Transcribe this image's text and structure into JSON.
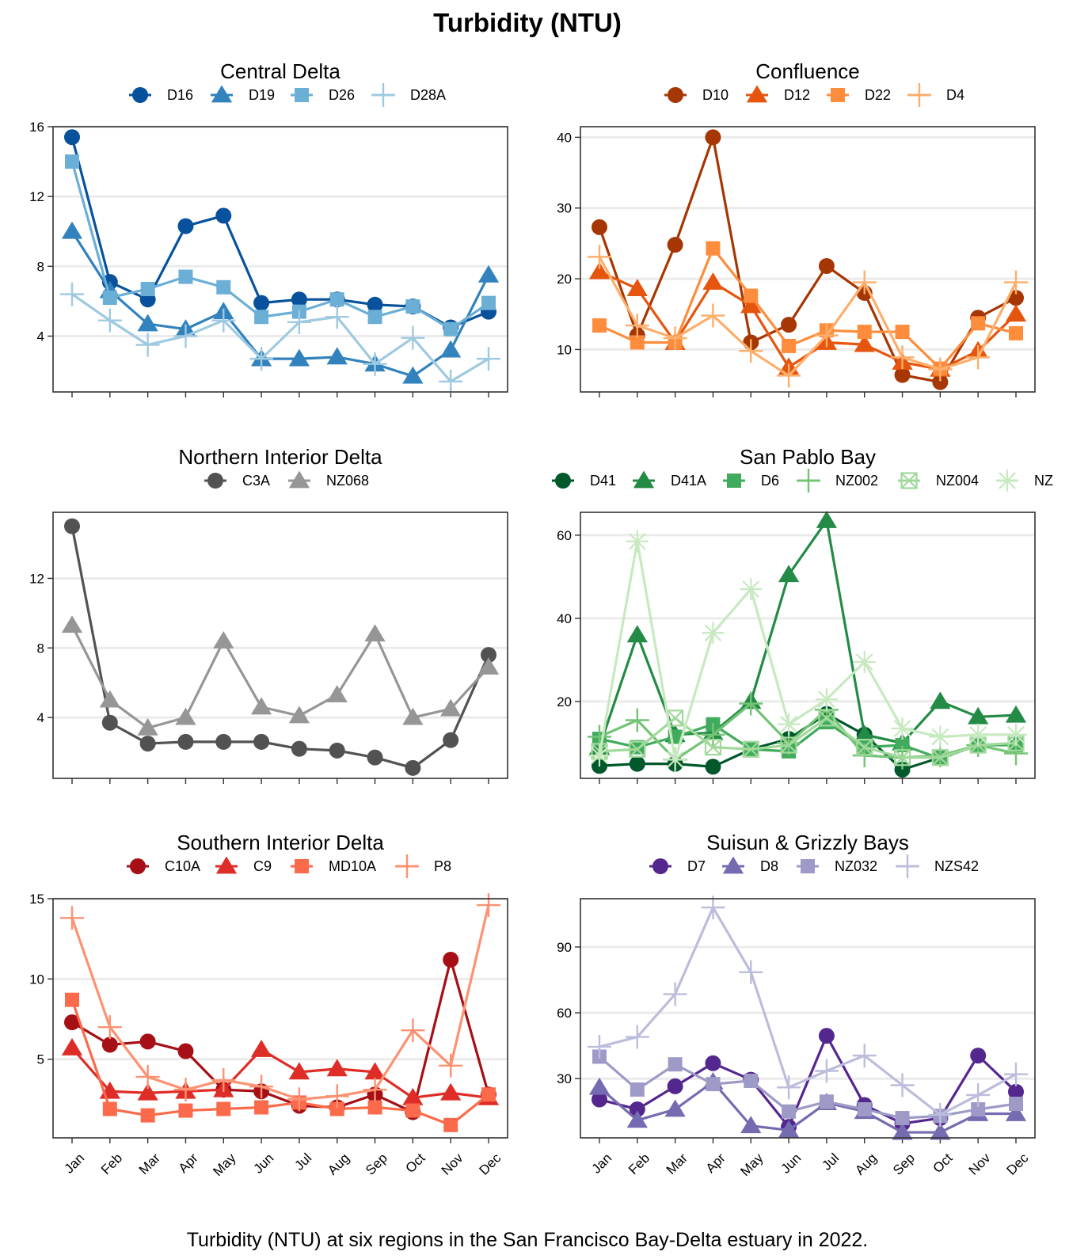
{
  "title": "Turbidity (NTU)",
  "caption": "Turbidity (NTU) at six regions in the San Francisco Bay-Delta estuary in 2022.",
  "chart_data": [
    {
      "type": "line",
      "title": "Central Delta",
      "categories": [
        "Jan",
        "Feb",
        "Mar",
        "Apr",
        "May",
        "Jun",
        "Jul",
        "Aug",
        "Sep",
        "Oct",
        "Nov",
        "Dec"
      ],
      "yticks": [
        4,
        8,
        12,
        16
      ],
      "ylim": [
        0.8,
        16
      ],
      "series": [
        {
          "name": "D16",
          "color": "#08519c",
          "shape": "circle",
          "values": [
            15.4,
            7.1,
            6.1,
            10.3,
            10.9,
            5.9,
            6.1,
            6.1,
            5.8,
            5.7,
            4.5,
            5.4
          ]
        },
        {
          "name": "D19",
          "color": "#3182bd",
          "shape": "triangle",
          "values": [
            10.0,
            6.6,
            4.7,
            4.4,
            5.4,
            2.7,
            2.7,
            2.8,
            2.4,
            1.7,
            3.2,
            7.5
          ]
        },
        {
          "name": "D26",
          "color": "#6baed6",
          "shape": "square",
          "values": [
            14.0,
            6.2,
            6.7,
            7.4,
            6.8,
            5.1,
            5.4,
            6.1,
            5.1,
            5.7,
            4.4,
            5.9
          ]
        },
        {
          "name": "D28A",
          "color": "#9ecae1",
          "shape": "plus",
          "values": [
            6.4,
            4.9,
            3.5,
            4.0,
            4.9,
            2.7,
            4.8,
            5.1,
            2.4,
            3.9,
            1.4,
            2.7
          ]
        }
      ]
    },
    {
      "type": "line",
      "title": "Confluence",
      "categories": [
        "Jan",
        "Feb",
        "Mar",
        "Apr",
        "May",
        "Jun",
        "Jul",
        "Aug",
        "Sep",
        "Oct",
        "Nov",
        "Dec"
      ],
      "yticks": [
        10,
        20,
        30,
        40
      ],
      "ylim": [
        4,
        41.5
      ],
      "series": [
        {
          "name": "D10",
          "color": "#a63603",
          "shape": "circle",
          "values": [
            27.3,
            12.0,
            24.8,
            40.0,
            11.0,
            13.5,
            21.8,
            18.0,
            6.4,
            5.4,
            14.5,
            17.3
          ]
        },
        {
          "name": "D12",
          "color": "#e6550d",
          "shape": "triangle",
          "values": [
            21.0,
            18.6,
            11.0,
            19.5,
            16.2,
            7.5,
            11.0,
            10.7,
            8.2,
            7.2,
            9.8,
            15.0
          ]
        },
        {
          "name": "D22",
          "color": "#fd8d3c",
          "shape": "square",
          "values": [
            13.4,
            11.0,
            11.0,
            24.3,
            17.6,
            10.5,
            12.7,
            12.5,
            12.5,
            7.3,
            13.7,
            12.3
          ]
        },
        {
          "name": "D4",
          "color": "#fdae6b",
          "shape": "plus",
          "values": [
            23.1,
            13.4,
            11.6,
            14.8,
            9.8,
            6.3,
            12.0,
            19.5,
            8.9,
            7.2,
            8.9,
            19.5
          ]
        }
      ]
    },
    {
      "type": "line",
      "title": "Northern Interior Delta",
      "categories": [
        "Jan",
        "Feb",
        "Mar",
        "Apr",
        "May",
        "Jun",
        "Jul",
        "Aug",
        "Sep",
        "Oct",
        "Nov",
        "Dec"
      ],
      "yticks": [
        4,
        8,
        12
      ],
      "ylim": [
        0.5,
        15.8
      ],
      "series": [
        {
          "name": "C3A",
          "color": "#525252",
          "shape": "circle",
          "values": [
            15.0,
            3.7,
            2.5,
            2.6,
            2.6,
            2.6,
            2.2,
            2.1,
            1.7,
            1.1,
            2.7,
            7.6
          ]
        },
        {
          "name": "NZ068",
          "color": "#969696",
          "shape": "triangle",
          "values": [
            9.3,
            5.0,
            3.4,
            4.0,
            8.4,
            4.6,
            4.1,
            5.3,
            8.8,
            4.0,
            4.5,
            6.9
          ]
        }
      ]
    },
    {
      "type": "line",
      "title": "San Pablo Bay",
      "categories": [
        "Jan",
        "Feb",
        "Mar",
        "Apr",
        "May",
        "Jun",
        "Jul",
        "Aug",
        "Sep",
        "Oct",
        "Nov",
        "Dec"
      ],
      "yticks": [
        20,
        40,
        60
      ],
      "ylim": [
        1.5,
        65.5
      ],
      "series": [
        {
          "name": "D41",
          "color": "#00582b",
          "shape": "circle",
          "values": [
            4.5,
            5.0,
            5.0,
            4.3,
            8.5,
            11.0,
            17.0,
            12.0,
            3.6,
            6.5,
            9.5,
            9.8
          ]
        },
        {
          "name": "D41A",
          "color": "#238b45",
          "shape": "triangle",
          "values": [
            9.0,
            36.0,
            12.0,
            12.5,
            20.0,
            50.5,
            63.5,
            12.0,
            10.0,
            20.0,
            16.3,
            16.7
          ]
        },
        {
          "name": "D6",
          "color": "#41ab5d",
          "shape": "square",
          "values": [
            11.0,
            9.0,
            11.5,
            14.5,
            8.5,
            8.0,
            15.0,
            9.0,
            9.5,
            6.3,
            9.5,
            9.5
          ]
        },
        {
          "name": "NZ002",
          "color": "#74c476",
          "shape": "plus",
          "values": [
            11.5,
            15.5,
            6.0,
            12.0,
            19.5,
            10.0,
            18.0,
            7.0,
            6.5,
            7.0,
            9.5,
            7.5
          ]
        },
        {
          "name": "NZ004",
          "color": "#a1d99b",
          "shape": "squarecross",
          "values": [
            8.0,
            8.5,
            16.0,
            9.0,
            8.5,
            9.5,
            16.0,
            9.0,
            6.5,
            6.5,
            9.5,
            10.0
          ]
        },
        {
          "name": "NZ",
          "color": "#c7e9c0",
          "shape": "asterisk",
          "values": [
            7.0,
            58.5,
            6.0,
            36.5,
            47.0,
            14.5,
            20.5,
            29.5,
            13.5,
            11.5,
            12.0,
            12.0
          ]
        }
      ]
    },
    {
      "type": "line",
      "title": "Southern Interior Delta",
      "categories": [
        "Jan",
        "Feb",
        "Mar",
        "Apr",
        "May",
        "Jun",
        "Jul",
        "Aug",
        "Sep",
        "Oct",
        "Nov",
        "Dec"
      ],
      "yticks": [
        5,
        10,
        15
      ],
      "ylim": [
        0.1,
        15.0
      ],
      "series": [
        {
          "name": "C10A",
          "color": "#a50f15",
          "shape": "circle",
          "values": [
            7.3,
            5.9,
            6.1,
            5.5,
            3.1,
            3.0,
            2.1,
            2.0,
            2.8,
            1.7,
            11.2,
            2.8
          ]
        },
        {
          "name": "C9",
          "color": "#de2d26",
          "shape": "triangle",
          "values": [
            5.7,
            3.0,
            2.9,
            3.0,
            3.1,
            5.6,
            4.2,
            4.4,
            4.2,
            2.6,
            2.9,
            2.6
          ]
        },
        {
          "name": "MD10A",
          "color": "#fb6a4a",
          "shape": "square",
          "values": [
            8.7,
            1.9,
            1.5,
            1.8,
            1.9,
            2.0,
            2.3,
            1.9,
            2.0,
            1.8,
            0.9,
            2.8
          ]
        },
        {
          "name": "P8",
          "color": "#fc9272",
          "shape": "plus",
          "values": [
            13.8,
            7.0,
            3.9,
            3.1,
            3.7,
            3.3,
            2.5,
            2.7,
            3.1,
            6.8,
            4.6,
            14.6
          ]
        }
      ]
    },
    {
      "type": "line",
      "title": "Suisun & Grizzly Bays",
      "categories": [
        "Jan",
        "Feb",
        "Mar",
        "Apr",
        "May",
        "Jun",
        "Jul",
        "Aug",
        "Sep",
        "Oct",
        "Nov",
        "Dec"
      ],
      "yticks": [
        30,
        60,
        90
      ],
      "ylim": [
        3,
        112
      ],
      "series": [
        {
          "name": "D7",
          "color": "#54278f",
          "shape": "circle",
          "values": [
            20.5,
            16.0,
            26.5,
            37.0,
            29.5,
            8.0,
            49.5,
            18.0,
            9.5,
            12.0,
            40.5,
            24.0
          ]
        },
        {
          "name": "D8",
          "color": "#756bb1",
          "shape": "triangle",
          "values": [
            26.0,
            11.0,
            16.0,
            28.5,
            8.5,
            6.5,
            19.0,
            15.0,
            5.5,
            5.5,
            14.0,
            14.0
          ]
        },
        {
          "name": "NZ032",
          "color": "#9e9ac8",
          "shape": "square",
          "values": [
            40.0,
            25.0,
            36.5,
            27.5,
            29.0,
            15.0,
            19.5,
            16.0,
            12.0,
            13.0,
            16.0,
            18.5
          ]
        },
        {
          "name": "NZS42",
          "color": "#bcbddc",
          "shape": "plus",
          "values": [
            44.5,
            49.0,
            68.5,
            108.0,
            78.5,
            26.0,
            33.5,
            40.5,
            27.0,
            13.5,
            22.5,
            32.0
          ]
        }
      ]
    }
  ]
}
